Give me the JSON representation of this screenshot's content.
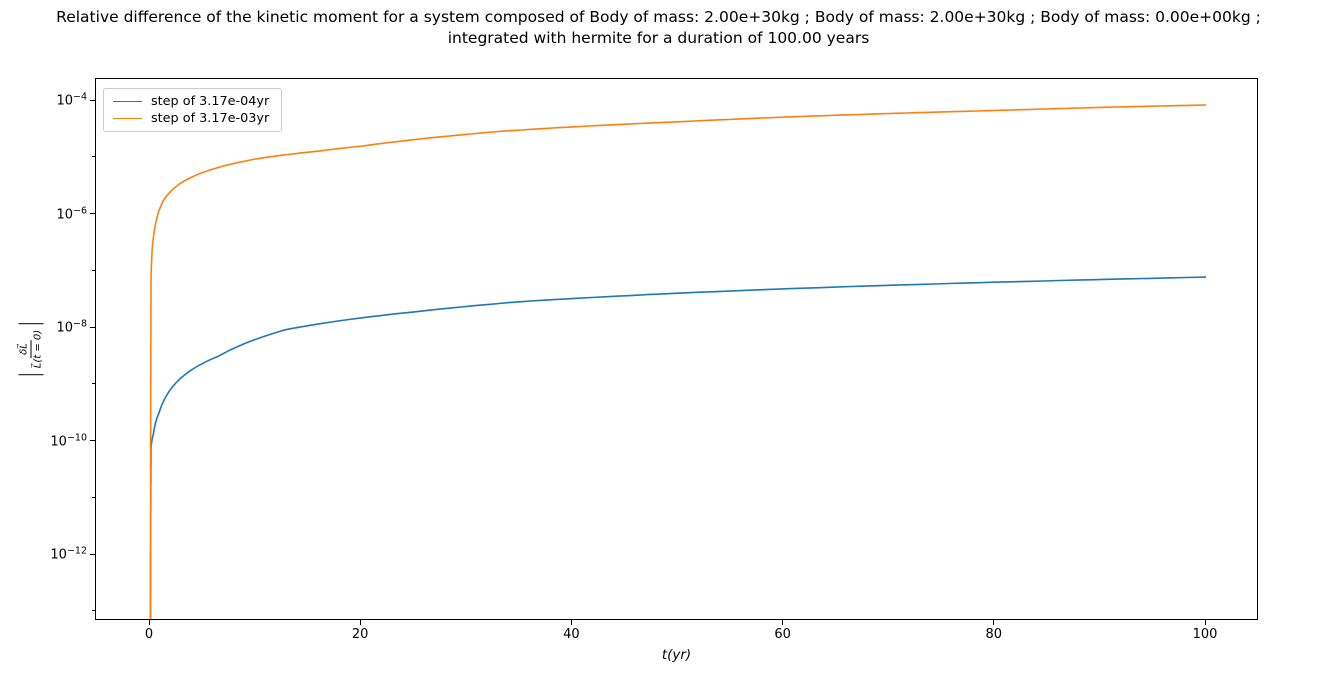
{
  "title": {
    "line1": "Relative difference of the kinetic moment for a system composed of Body of mass: 2.00e+30kg ; Body of mass: 2.00e+30kg ; Body of mass: 0.00e+00kg ;",
    "line2": "integrated with hermite for a duration of 100.00 years"
  },
  "chart_data": {
    "type": "line",
    "title": "Relative difference of the kinetic moment for a system composed of Body of mass: 2.00e+30kg ; Body of mass: 2.00e+30kg ; Body of mass: 0.00e+00kg ; integrated with hermite for a duration of 100.00 years",
    "xlabel": "t(yr)",
    "ylabel": "|δL⃗ / L⃗(t = 0)|",
    "ylabel_numerator": "δL⃗",
    "ylabel_denominator": "L⃗(t = 0)",
    "grid": false,
    "legend_position": "upper left",
    "x_axis": {
      "scale": "linear",
      "min": -5.3,
      "max": 105.3,
      "ticks": [
        {
          "value": 0,
          "label": "0"
        },
        {
          "value": 20,
          "label": "20"
        },
        {
          "value": 40,
          "label": "40"
        },
        {
          "value": 60,
          "label": "60"
        },
        {
          "value": 80,
          "label": "80"
        },
        {
          "value": 100,
          "label": "100"
        }
      ]
    },
    "y_axis": {
      "scale": "log",
      "top_exponent": -3.61,
      "bottom_exponent": -13.16,
      "labeled_ticks": [
        {
          "exponent": -4,
          "base": "10",
          "sup": "−4"
        },
        {
          "exponent": -6,
          "base": "10",
          "sup": "−6"
        },
        {
          "exponent": -8,
          "base": "10",
          "sup": "−8"
        },
        {
          "exponent": -10,
          "base": "10",
          "sup": "−10"
        },
        {
          "exponent": -12,
          "base": "10",
          "sup": "−12"
        }
      ],
      "unlabeled_tick_exponents": [
        -5,
        -7,
        -9,
        -11,
        -13
      ]
    },
    "series": [
      {
        "name": "step of 3.17e-04yr",
        "color": "#1f77b4",
        "points": [
          [
            0.048,
            7e-14
          ],
          [
            0.06,
            1.2e-12
          ],
          [
            0.08,
            1.6e-11
          ],
          [
            0.1,
            8e-11
          ],
          [
            0.3,
            1.3e-10
          ],
          [
            0.85,
            3.2e-10
          ],
          [
            1.8,
            7.6e-10
          ],
          [
            3.3,
            1.5e-09
          ],
          [
            6.5,
            3.2e-09
          ],
          [
            12.8,
            9.3e-09
          ],
          [
            24.8,
            1.9e-08
          ],
          [
            35,
            2.9e-08
          ],
          [
            50,
            4.1e-08
          ],
          [
            64,
            5.2e-08
          ],
          [
            80,
            6.4e-08
          ],
          [
            100,
            7.9e-08
          ]
        ]
      },
      {
        "name": "step of 3.17e-03yr",
        "color": "#ff7f0e",
        "points": [
          [
            0.048,
            7e-14
          ],
          [
            0.055,
            5e-12
          ],
          [
            0.065,
            5e-10
          ],
          [
            0.08,
            5e-09
          ],
          [
            0.1,
            8e-08
          ],
          [
            0.2,
            2.4e-07
          ],
          [
            0.38,
            4.7e-07
          ],
          [
            0.7,
            9.5e-07
          ],
          [
            1.3,
            1.8e-06
          ],
          [
            2.84,
            3.5e-06
          ],
          [
            5,
            5.5e-06
          ],
          [
            10,
            9.5e-06
          ],
          [
            15.8,
            1.3e-05
          ],
          [
            20,
            1.6e-05
          ],
          [
            33,
            2.9e-05
          ],
          [
            40,
            3.5e-05
          ],
          [
            50,
            4.3e-05
          ],
          [
            60,
            5.2e-05
          ],
          [
            71,
            6.1e-05
          ],
          [
            80,
            6.8e-05
          ],
          [
            90,
            7.7e-05
          ],
          [
            100,
            8.5e-05
          ]
        ]
      }
    ]
  }
}
